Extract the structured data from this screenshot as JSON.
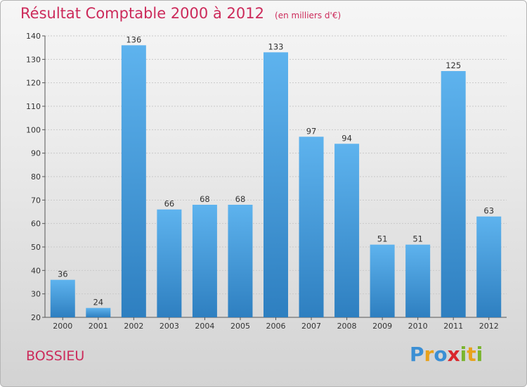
{
  "header": {
    "title": "Résultat Comptable 2000 à 2012",
    "subtitle": "(en milliers d'€)"
  },
  "footer": {
    "commune": "BOSSIEU",
    "logo_letters": [
      "P",
      "r",
      "o",
      "x",
      "i",
      "t",
      "i"
    ],
    "logo_colors": [
      "#3b8fd4",
      "#e8a21c",
      "#3b8fd4",
      "#d9262c",
      "#7ab52e",
      "#e8a21c",
      "#7ab52e"
    ]
  },
  "colors": {
    "bar_top": "#5eb3ee",
    "bar_bottom": "#2e7fc0",
    "text": "#333333",
    "accent": "#cc2a5a"
  },
  "chart_data": {
    "type": "bar",
    "title": "Résultat Comptable 2000 à 2012",
    "subtitle": "(en milliers d'€)",
    "categories": [
      "2000",
      "2001",
      "2002",
      "2003",
      "2004",
      "2005",
      "2006",
      "2007",
      "2008",
      "2009",
      "2010",
      "2011",
      "2012"
    ],
    "values": [
      36,
      24,
      136,
      66,
      68,
      68,
      133,
      97,
      94,
      51,
      51,
      125,
      63
    ],
    "ylim": [
      20,
      140
    ],
    "yticks": [
      20,
      30,
      40,
      50,
      60,
      70,
      80,
      90,
      100,
      110,
      120,
      130,
      140
    ],
    "grid": true
  }
}
